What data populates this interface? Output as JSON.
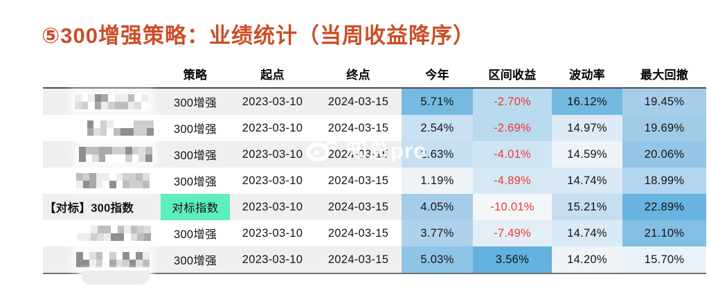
{
  "title": "⑤300增强策略：业绩统计（当周收益降序）",
  "colors": {
    "title": "#cc4d26",
    "negative_text": "#f2372b",
    "benchmark_highlight": "#5defbc",
    "row_alt_bg": "#efefef",
    "row_bg": "#ffffff",
    "header_rule": "#4a4a4a",
    "bottom_rule": "#707070"
  },
  "watermark": {
    "icon": "weibo-eye-icon",
    "text": "知总pro"
  },
  "table": {
    "headers": [
      "",
      "策略",
      "起点",
      "终点",
      "今年",
      "区间收益",
      "波动率",
      "最大回撤"
    ],
    "rows": [
      {
        "name": "",
        "censored": true,
        "strategy": "300增强",
        "strategy_bg": "",
        "start": "2023-03-10",
        "end": "2024-03-15",
        "ytd": {
          "v": "5.71%",
          "bg": "#76bae2"
        },
        "interval": {
          "v": "-2.70%",
          "bg": "#b9daef",
          "neg": true
        },
        "vol": {
          "v": "16.12%",
          "bg": "#74b9e2"
        },
        "mdd": {
          "v": "19.45%",
          "bg": "#a6cee9"
        }
      },
      {
        "name": "",
        "censored": true,
        "strategy": "300增强",
        "strategy_bg": "",
        "start": "2023-03-10",
        "end": "2024-03-15",
        "ytd": {
          "v": "2.54%",
          "bg": "#c9e1f2"
        },
        "interval": {
          "v": "-2.69%",
          "bg": "#b9daef",
          "neg": true
        },
        "vol": {
          "v": "14.97%",
          "bg": "#dcebf6"
        },
        "mdd": {
          "v": "19.69%",
          "bg": "#a0cbe8"
        }
      },
      {
        "name": "",
        "censored": true,
        "strategy": "300增强",
        "strategy_bg": "",
        "start": "2023-03-10",
        "end": "2024-03-15",
        "ytd": {
          "v": "2.63%",
          "bg": "#c7e0f1"
        },
        "interval": {
          "v": "-4.01%",
          "bg": "#cfe4f3",
          "neg": true
        },
        "vol": {
          "v": "14.59%",
          "bg": "#eef4f9"
        },
        "mdd": {
          "v": "20.06%",
          "bg": "#95c5e6"
        }
      },
      {
        "name": "",
        "censored": true,
        "strategy": "300增强",
        "strategy_bg": "",
        "start": "2023-03-10",
        "end": "2024-03-15",
        "ytd": {
          "v": "1.19%",
          "bg": "#eff4f8"
        },
        "interval": {
          "v": "-4.89%",
          "bg": "#d7e8f5",
          "neg": true
        },
        "vol": {
          "v": "14.74%",
          "bg": "#d9e9f5"
        },
        "mdd": {
          "v": "18.99%",
          "bg": "#b4d5ee"
        }
      },
      {
        "name": "【对标】300指数",
        "censored": false,
        "strategy": "对标指数",
        "strategy_bg": "#5defbc",
        "start": "2023-03-10",
        "end": "2024-03-15",
        "ytd": {
          "v": "4.05%",
          "bg": "#a5cdea"
        },
        "interval": {
          "v": "-10.01%",
          "bg": "#f4f7fa",
          "neg": true
        },
        "vol": {
          "v": "15.21%",
          "bg": "#c5def0"
        },
        "mdd": {
          "v": "22.89%",
          "bg": "#68b3df"
        }
      },
      {
        "name": "",
        "censored": true,
        "strategy": "300增强",
        "strategy_bg": "",
        "start": "2023-03-10",
        "end": "2024-03-15",
        "ytd": {
          "v": "3.77%",
          "bg": "#aed2ec"
        },
        "interval": {
          "v": "-7.49%",
          "bg": "#e4eef7",
          "neg": true
        },
        "vol": {
          "v": "14.74%",
          "bg": "#d9e9f5"
        },
        "mdd": {
          "v": "21.10%",
          "bg": "#82bfe3"
        }
      },
      {
        "name": "",
        "censored": true,
        "strategy": "300增强",
        "strategy_bg": "",
        "start": "2023-03-10",
        "end": "2024-03-15",
        "ytd": {
          "v": "5.03%",
          "bg": "#8ec4e6"
        },
        "interval": {
          "v": "3.56%",
          "bg": "#63b1de",
          "neg": false
        },
        "vol": {
          "v": "14.20%",
          "bg": "#f0f4f7"
        },
        "mdd": {
          "v": "15.70%",
          "bg": "#eaf2f9"
        }
      }
    ]
  }
}
